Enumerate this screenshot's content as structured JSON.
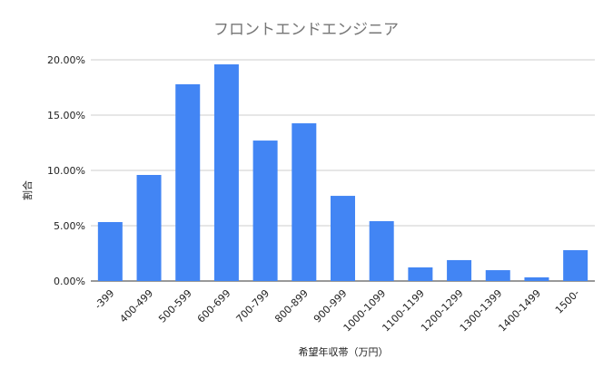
{
  "chart_data": {
    "type": "bar",
    "title": "フロントエンドエンジニア",
    "xlabel": "希望年収帯（万円）",
    "ylabel": "割合",
    "ylim": [
      0,
      20
    ],
    "yticks": [
      "0.00%",
      "5.00%",
      "10.00%",
      "15.00%",
      "20.00%"
    ],
    "ytick_values": [
      0,
      5,
      10,
      15,
      20
    ],
    "grid": true,
    "bar_color": "#4285f4",
    "categories": [
      "-399",
      "400-499",
      "500-599",
      "600-699",
      "700-799",
      "800-899",
      "900-999",
      "1000-1099",
      "1100-1199",
      "1200-1299",
      "1300-1399",
      "1400-1499",
      "1500-"
    ],
    "values": [
      5.33,
      9.59,
      17.79,
      19.59,
      12.7,
      14.26,
      7.7,
      5.41,
      1.23,
      1.89,
      0.98,
      0.33,
      2.79
    ]
  }
}
